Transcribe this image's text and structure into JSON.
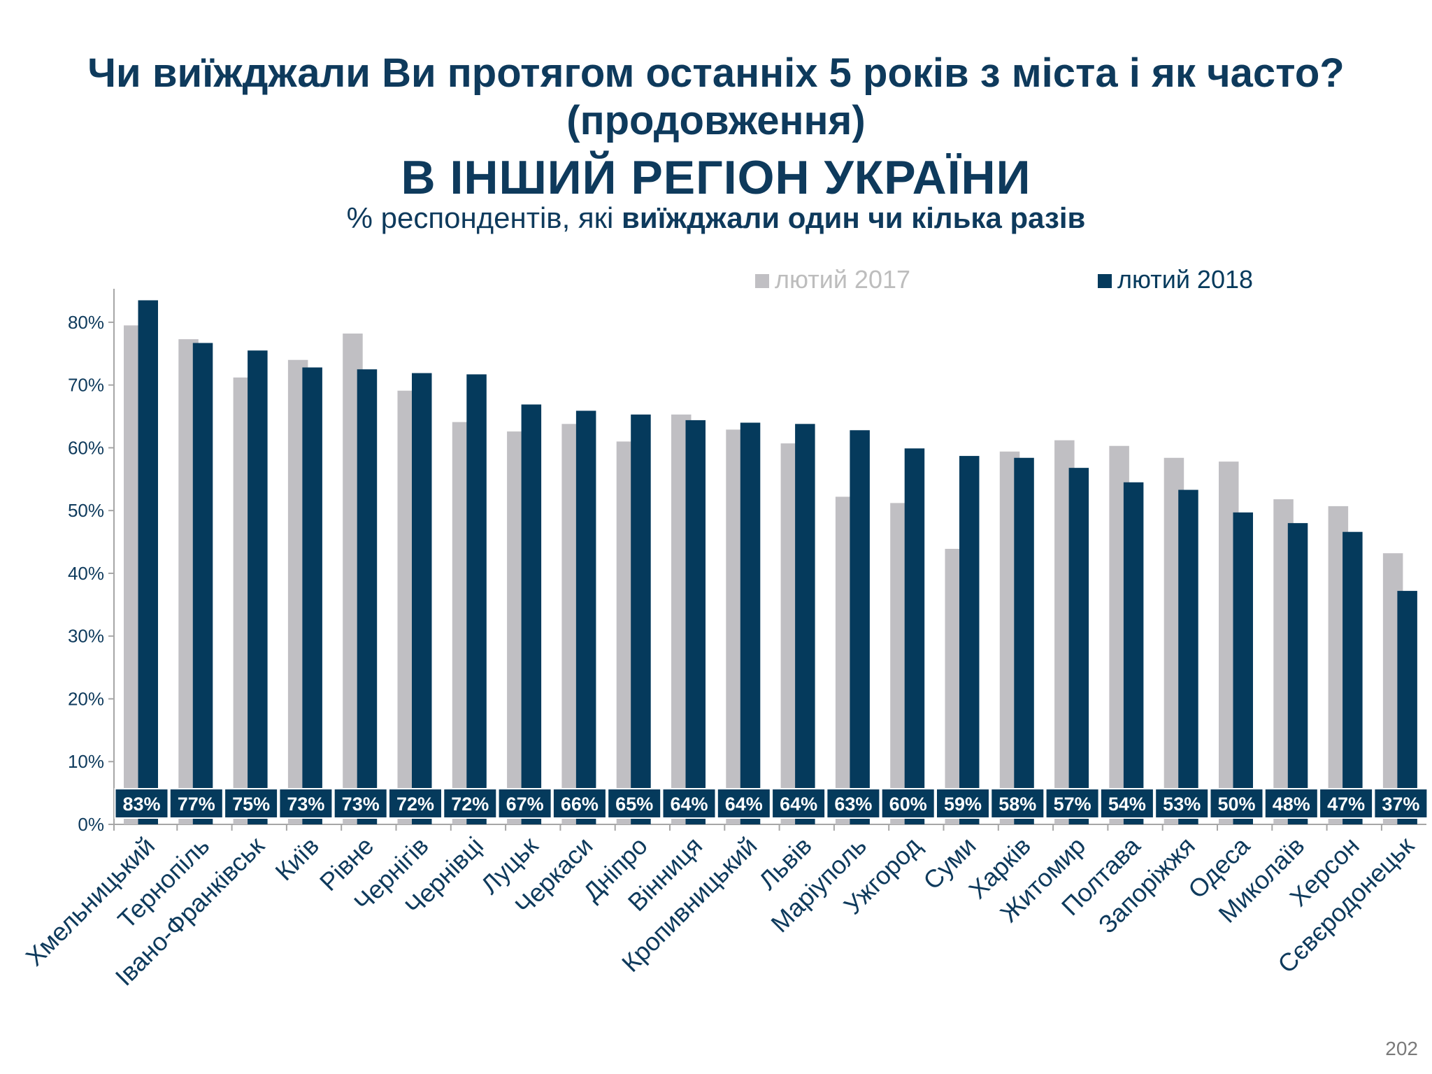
{
  "title": {
    "line1": "Чи виїжджали Ви протягом останніх 5 років з міста і як часто?",
    "line2": "(продовження)",
    "region": "В ІНШИЙ РЕГІОН УКРАЇНИ",
    "subtitle_prefix": "% респондентів, які ",
    "subtitle_bold": "виїжджали один чи кілька разів"
  },
  "page_number": "202",
  "colors": {
    "series_2017": "#c0bfc3",
    "series_2018": "#053a5c",
    "axis": "#a6a6a6",
    "text": "#0e3a5c"
  },
  "chart_data": {
    "type": "bar",
    "categories": [
      "Хмельницький",
      "Тернопіль",
      "Івано-Франківськ",
      "Київ",
      "Рівне",
      "Чернігів",
      "Чернівці",
      "Луцьк",
      "Черкаси",
      "Дніпро",
      "Вінниця",
      "Кропивницький",
      "Львів",
      "Маріуполь",
      "Ужгород",
      "Суми",
      "Харків",
      "Житомир",
      "Полтава",
      "Запоріжжя",
      "Одеса",
      "Миколаїв",
      "Херсон",
      "Сєвєродонецьк"
    ],
    "series": [
      {
        "name": "лютий 2017",
        "values": [
          79.5,
          77.3,
          71.2,
          74.0,
          78.2,
          69.1,
          64.1,
          62.6,
          63.8,
          61.0,
          65.3,
          62.9,
          60.7,
          52.2,
          51.2,
          43.9,
          59.4,
          61.2,
          60.3,
          58.4,
          57.8,
          51.8,
          50.7,
          43.2
        ]
      },
      {
        "name": "лютий 2018",
        "values": [
          83.5,
          76.7,
          75.5,
          72.8,
          72.5,
          71.9,
          71.7,
          66.9,
          65.9,
          65.3,
          64.4,
          64.0,
          63.8,
          62.8,
          59.9,
          58.7,
          58.4,
          56.8,
          54.5,
          53.3,
          49.7,
          48.0,
          46.6,
          37.2
        ]
      }
    ],
    "labels": [
      "83%",
      "77%",
      "75%",
      "73%",
      "73%",
      "72%",
      "72%",
      "67%",
      "66%",
      "65%",
      "64%",
      "64%",
      "64%",
      "63%",
      "60%",
      "59%",
      "58%",
      "57%",
      "54%",
      "53%",
      "50%",
      "48%",
      "47%",
      "37%"
    ],
    "yticks": [
      "0%",
      "10%",
      "20%",
      "30%",
      "40%",
      "50%",
      "60%",
      "70%",
      "80%"
    ],
    "ylim": [
      0,
      85
    ],
    "legend_placement": "top-right",
    "grid": false,
    "xlabel": "",
    "ylabel": ""
  }
}
